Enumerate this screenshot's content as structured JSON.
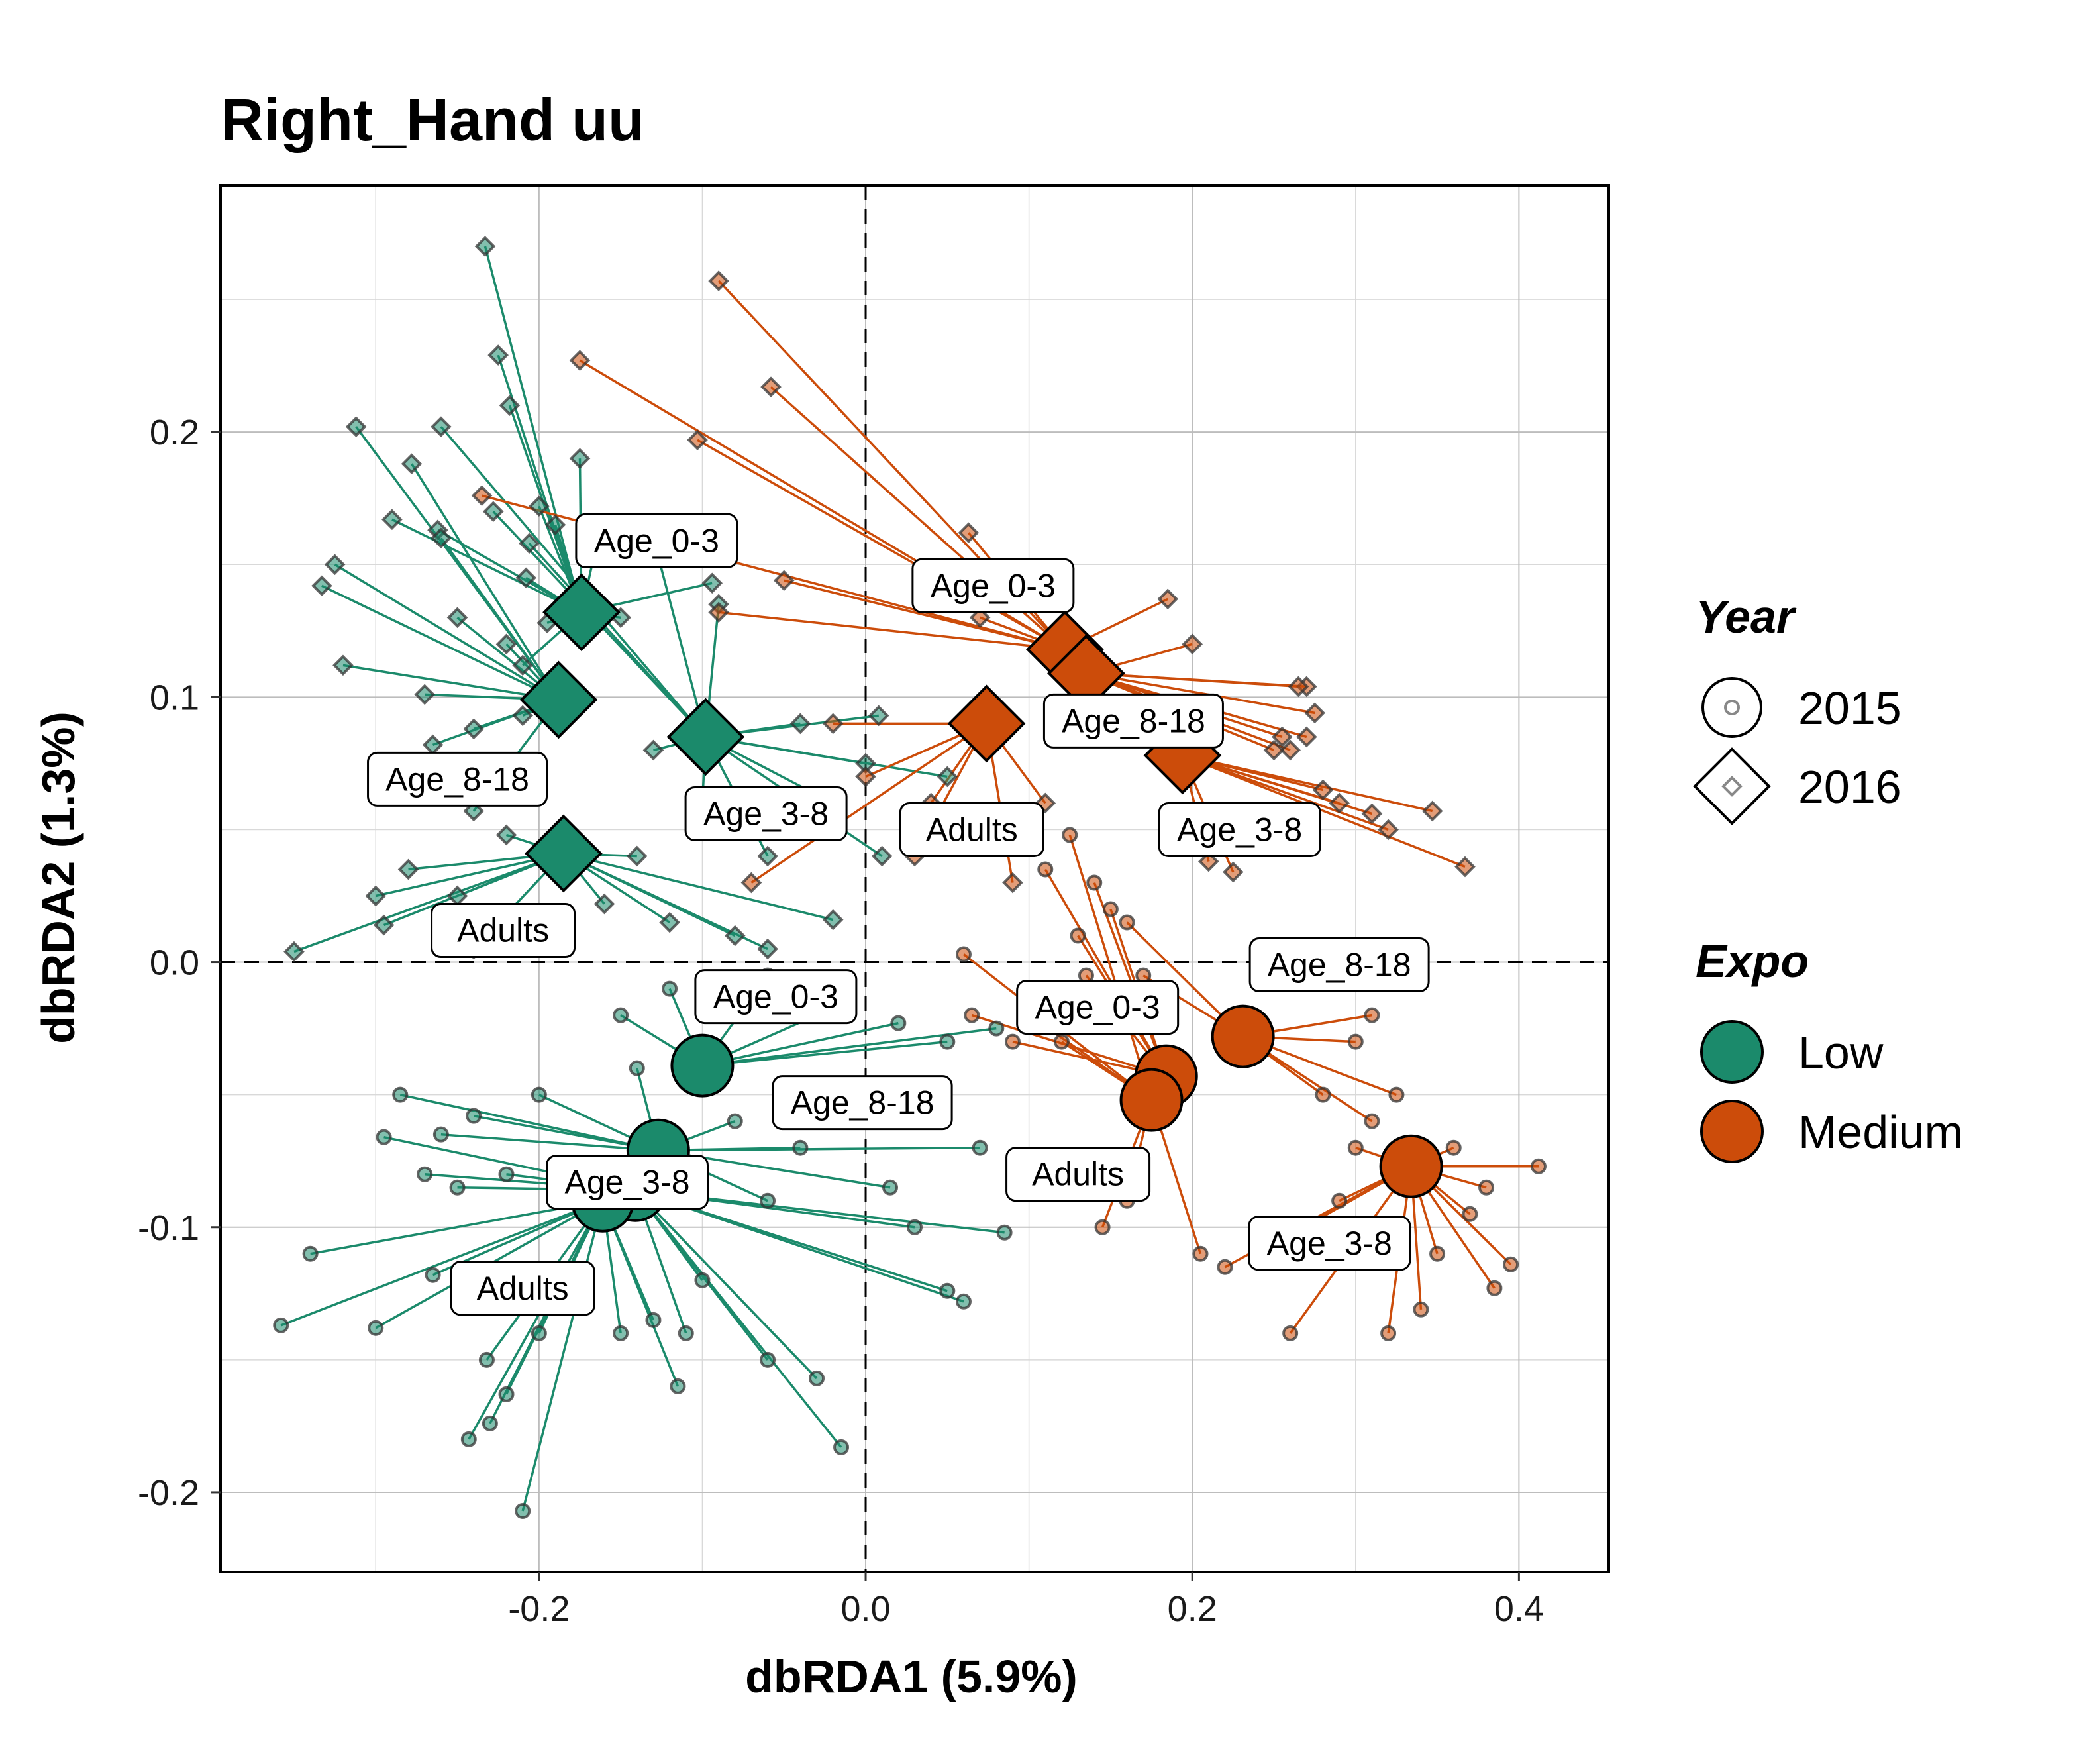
{
  "chart_data": {
    "type": "scatter",
    "title": "Right_Hand uu",
    "xlabel": "dbRDA1 (5.9%)",
    "ylabel": "dbRDA2 (1.3%)",
    "xlim": [
      -0.395,
      0.455
    ],
    "ylim": [
      -0.23,
      0.293
    ],
    "x_ticks": [
      -0.2,
      0.0,
      0.2,
      0.4
    ],
    "x_tick_labels": [
      "-0.2",
      "0.0",
      "0.2",
      "0.4"
    ],
    "y_ticks": [
      -0.2,
      -0.1,
      0.0,
      0.1,
      0.2
    ],
    "y_tick_labels": [
      "-0.2",
      "-0.1",
      "0.0",
      "0.1",
      "0.2"
    ],
    "grid": true,
    "reference_lines": {
      "x": 0,
      "y": 0
    },
    "legend_position": "right",
    "legends": [
      {
        "title": "Year",
        "entries": [
          {
            "label": "2015",
            "shape": "circle"
          },
          {
            "label": "2016",
            "shape": "diamond"
          }
        ]
      },
      {
        "title": "Expo",
        "entries": [
          {
            "label": "Low",
            "color": "#1b8a6b"
          },
          {
            "label": "Medium",
            "color": "#cc4c0a"
          }
        ]
      }
    ],
    "colors": {
      "Low": "#1b8a6b",
      "Medium": "#cc4c0a"
    },
    "centroids": [
      {
        "expo": "Low",
        "year": "2016",
        "age": "Age_0-3",
        "x": -0.174,
        "y": 0.132
      },
      {
        "expo": "Low",
        "year": "2016",
        "age": "Age_8-18",
        "x": -0.188,
        "y": 0.099
      },
      {
        "expo": "Low",
        "year": "2016",
        "age": "Age_3-8",
        "x": -0.098,
        "y": 0.085
      },
      {
        "expo": "Low",
        "year": "2016",
        "age": "Adults",
        "x": -0.185,
        "y": 0.041
      },
      {
        "expo": "Low",
        "year": "2015",
        "age": "Age_0-3",
        "x": -0.1,
        "y": -0.039
      },
      {
        "expo": "Low",
        "year": "2015",
        "age": "Age_8-18",
        "x": -0.127,
        "y": -0.071
      },
      {
        "expo": "Low",
        "year": "2015",
        "age": "Age_3-8",
        "x": -0.141,
        "y": -0.086
      },
      {
        "expo": "Low",
        "year": "2015",
        "age": "Adults",
        "x": -0.161,
        "y": -0.09
      },
      {
        "expo": "Medium",
        "year": "2016",
        "age": "Age_0-3",
        "x": 0.122,
        "y": 0.118
      },
      {
        "expo": "Medium",
        "year": "2016",
        "age": "Age_8-18",
        "x": 0.135,
        "y": 0.109
      },
      {
        "expo": "Medium",
        "year": "2016",
        "age": "Adults",
        "x": 0.074,
        "y": 0.09
      },
      {
        "expo": "Medium",
        "year": "2016",
        "age": "Age_3-8",
        "x": 0.194,
        "y": 0.078
      },
      {
        "expo": "Medium",
        "year": "2015",
        "age": "Age_8-18",
        "x": 0.231,
        "y": -0.028
      },
      {
        "expo": "Medium",
        "year": "2015",
        "age": "Age_0-3",
        "x": 0.184,
        "y": -0.043
      },
      {
        "expo": "Medium",
        "year": "2015",
        "age": "Adults",
        "x": 0.175,
        "y": -0.052
      },
      {
        "expo": "Medium",
        "year": "2015",
        "age": "Age_3-8",
        "x": 0.334,
        "y": -0.077
      }
    ],
    "centroid_labels": [
      {
        "text": "Age_0-3",
        "x": -0.128,
        "y": 0.159
      },
      {
        "text": "Age_8-18",
        "x": -0.25,
        "y": 0.069
      },
      {
        "text": "Age_3-8",
        "x": -0.061,
        "y": 0.056
      },
      {
        "text": "Adults",
        "x": -0.222,
        "y": 0.012
      },
      {
        "text": "Age_0-3",
        "x": 0.078,
        "y": 0.142
      },
      {
        "text": "Age_8-18",
        "x": 0.164,
        "y": 0.091
      },
      {
        "text": "Adults",
        "x": 0.065,
        "y": 0.05
      },
      {
        "text": "Age_3-8",
        "x": 0.229,
        "y": 0.05
      },
      {
        "text": "Age_0-3",
        "x": -0.055,
        "y": -0.013
      },
      {
        "text": "Age_8-18",
        "x": -0.002,
        "y": -0.053
      },
      {
        "text": "Age_3-8",
        "x": -0.146,
        "y": -0.083
      },
      {
        "text": "Adults",
        "x": -0.21,
        "y": -0.123
      },
      {
        "text": "Age_8-18",
        "x": 0.29,
        "y": -0.001
      },
      {
        "text": "Age_0-3",
        "x": 0.142,
        "y": -0.017
      },
      {
        "text": "Adults",
        "x": 0.13,
        "y": -0.08
      },
      {
        "text": "Age_3-8",
        "x": 0.284,
        "y": -0.106
      }
    ],
    "samples": [
      {
        "c": 0,
        "x": -0.233,
        "y": 0.27
      },
      {
        "c": 0,
        "x": -0.225,
        "y": 0.229
      },
      {
        "c": 0,
        "x": -0.218,
        "y": 0.21
      },
      {
        "c": 0,
        "x": -0.175,
        "y": 0.19
      },
      {
        "c": 0,
        "x": -0.2,
        "y": 0.172
      },
      {
        "c": 0,
        "x": -0.19,
        "y": 0.165
      },
      {
        "c": 0,
        "x": -0.262,
        "y": 0.163
      },
      {
        "c": 0,
        "x": -0.29,
        "y": 0.167
      },
      {
        "c": 0,
        "x": -0.208,
        "y": 0.145
      },
      {
        "c": 0,
        "x": -0.165,
        "y": 0.157
      },
      {
        "c": 0,
        "x": -0.094,
        "y": 0.143
      },
      {
        "c": 0,
        "x": -0.15,
        "y": 0.13
      },
      {
        "c": 0,
        "x": -0.21,
        "y": 0.112
      },
      {
        "c": 0,
        "x": -0.195,
        "y": 0.128
      },
      {
        "c": 1,
        "x": -0.312,
        "y": 0.202
      },
      {
        "c": 1,
        "x": -0.325,
        "y": 0.15
      },
      {
        "c": 1,
        "x": -0.333,
        "y": 0.142
      },
      {
        "c": 1,
        "x": -0.32,
        "y": 0.112
      },
      {
        "c": 1,
        "x": -0.278,
        "y": 0.188
      },
      {
        "c": 1,
        "x": -0.26,
        "y": 0.16
      },
      {
        "c": 1,
        "x": -0.27,
        "y": 0.101
      },
      {
        "c": 1,
        "x": -0.24,
        "y": 0.088
      },
      {
        "c": 1,
        "x": -0.25,
        "y": 0.13
      },
      {
        "c": 1,
        "x": -0.265,
        "y": 0.082
      },
      {
        "c": 1,
        "x": -0.22,
        "y": 0.12
      },
      {
        "c": 1,
        "x": -0.21,
        "y": 0.093
      },
      {
        "c": 1,
        "x": -0.24,
        "y": 0.057
      },
      {
        "c": 2,
        "x": -0.26,
        "y": 0.202
      },
      {
        "c": 2,
        "x": -0.228,
        "y": 0.17
      },
      {
        "c": 2,
        "x": -0.206,
        "y": 0.158
      },
      {
        "c": 2,
        "x": -0.13,
        "y": 0.16
      },
      {
        "c": 2,
        "x": -0.09,
        "y": 0.135
      },
      {
        "c": 2,
        "x": -0.13,
        "y": 0.08
      },
      {
        "c": 2,
        "x": -0.1,
        "y": 0.06
      },
      {
        "c": 2,
        "x": -0.06,
        "y": 0.04
      },
      {
        "c": 2,
        "x": -0.02,
        "y": 0.06
      },
      {
        "c": 2,
        "x": 0.0,
        "y": 0.075
      },
      {
        "c": 2,
        "x": 0.05,
        "y": 0.07
      },
      {
        "c": 2,
        "x": 0.008,
        "y": 0.093
      },
      {
        "c": 2,
        "x": -0.04,
        "y": 0.09
      },
      {
        "c": 2,
        "x": 0.01,
        "y": 0.04
      },
      {
        "c": 3,
        "x": -0.35,
        "y": 0.004
      },
      {
        "c": 3,
        "x": -0.3,
        "y": 0.025
      },
      {
        "c": 3,
        "x": -0.295,
        "y": 0.014
      },
      {
        "c": 3,
        "x": -0.28,
        "y": 0.035
      },
      {
        "c": 3,
        "x": -0.22,
        "y": 0.048
      },
      {
        "c": 3,
        "x": -0.16,
        "y": 0.022
      },
      {
        "c": 3,
        "x": -0.14,
        "y": 0.04
      },
      {
        "c": 3,
        "x": -0.12,
        "y": 0.015
      },
      {
        "c": 3,
        "x": -0.08,
        "y": 0.01
      },
      {
        "c": 3,
        "x": -0.06,
        "y": 0.005
      },
      {
        "c": 3,
        "x": -0.02,
        "y": 0.016
      },
      {
        "c": 3,
        "x": -0.25,
        "y": 0.025
      },
      {
        "c": 3,
        "x": -0.24,
        "y": 0.005
      },
      {
        "c": 4,
        "x": -0.06,
        "y": -0.005
      },
      {
        "c": 4,
        "x": -0.03,
        "y": -0.02
      },
      {
        "c": 4,
        "x": 0.02,
        "y": -0.023
      },
      {
        "c": 4,
        "x": 0.05,
        "y": -0.03
      },
      {
        "c": 4,
        "x": 0.08,
        "y": -0.025
      },
      {
        "c": 4,
        "x": -0.15,
        "y": -0.02
      },
      {
        "c": 4,
        "x": -0.12,
        "y": -0.01
      },
      {
        "c": 5,
        "x": -0.285,
        "y": -0.05
      },
      {
        "c": 5,
        "x": -0.26,
        "y": -0.065
      },
      {
        "c": 5,
        "x": -0.24,
        "y": -0.058
      },
      {
        "c": 5,
        "x": -0.2,
        "y": -0.05
      },
      {
        "c": 5,
        "x": -0.08,
        "y": -0.06
      },
      {
        "c": 5,
        "x": -0.04,
        "y": -0.07
      },
      {
        "c": 5,
        "x": 0.07,
        "y": -0.07
      },
      {
        "c": 5,
        "x": 0.015,
        "y": -0.085
      },
      {
        "c": 5,
        "x": -0.06,
        "y": -0.09
      },
      {
        "c": 5,
        "x": -0.14,
        "y": -0.04
      },
      {
        "c": 6,
        "x": -0.295,
        "y": -0.066
      },
      {
        "c": 6,
        "x": -0.27,
        "y": -0.08
      },
      {
        "c": 6,
        "x": -0.25,
        "y": -0.085
      },
      {
        "c": 6,
        "x": -0.22,
        "y": -0.08
      },
      {
        "c": 6,
        "x": -0.1,
        "y": -0.12
      },
      {
        "c": 6,
        "x": -0.06,
        "y": -0.15
      },
      {
        "c": 6,
        "x": -0.03,
        "y": -0.157
      },
      {
        "c": 6,
        "x": -0.015,
        "y": -0.183
      },
      {
        "c": 6,
        "x": 0.05,
        "y": -0.124
      },
      {
        "c": 6,
        "x": 0.06,
        "y": -0.128
      },
      {
        "c": 6,
        "x": 0.085,
        "y": -0.102
      },
      {
        "c": 6,
        "x": 0.03,
        "y": -0.1
      },
      {
        "c": 6,
        "x": -0.11,
        "y": -0.14
      },
      {
        "c": 7,
        "x": -0.358,
        "y": -0.137
      },
      {
        "c": 7,
        "x": -0.34,
        "y": -0.11
      },
      {
        "c": 7,
        "x": -0.3,
        "y": -0.138
      },
      {
        "c": 7,
        "x": -0.265,
        "y": -0.118
      },
      {
        "c": 7,
        "x": -0.232,
        "y": -0.15
      },
      {
        "c": 7,
        "x": -0.243,
        "y": -0.18
      },
      {
        "c": 7,
        "x": -0.22,
        "y": -0.163
      },
      {
        "c": 7,
        "x": -0.21,
        "y": -0.207
      },
      {
        "c": 7,
        "x": -0.15,
        "y": -0.14
      },
      {
        "c": 7,
        "x": -0.13,
        "y": -0.135
      },
      {
        "c": 7,
        "x": -0.115,
        "y": -0.16
      },
      {
        "c": 7,
        "x": -0.2,
        "y": -0.14
      },
      {
        "c": 7,
        "x": -0.23,
        "y": -0.174
      },
      {
        "c": 8,
        "x": -0.09,
        "y": 0.257
      },
      {
        "c": 8,
        "x": -0.175,
        "y": 0.227
      },
      {
        "c": 8,
        "x": -0.058,
        "y": 0.217
      },
      {
        "c": 8,
        "x": -0.103,
        "y": 0.197
      },
      {
        "c": 8,
        "x": -0.235,
        "y": 0.176
      },
      {
        "c": 8,
        "x": -0.05,
        "y": 0.144
      },
      {
        "c": 8,
        "x": -0.09,
        "y": 0.132
      },
      {
        "c": 8,
        "x": 0.185,
        "y": 0.137
      },
      {
        "c": 8,
        "x": 0.063,
        "y": 0.162
      },
      {
        "c": 8,
        "x": 0.07,
        "y": 0.13
      },
      {
        "c": 9,
        "x": 0.27,
        "y": 0.104
      },
      {
        "c": 9,
        "x": 0.265,
        "y": 0.104
      },
      {
        "c": 9,
        "x": 0.275,
        "y": 0.094
      },
      {
        "c": 9,
        "x": 0.255,
        "y": 0.085
      },
      {
        "c": 9,
        "x": 0.26,
        "y": 0.08
      },
      {
        "c": 9,
        "x": 0.25,
        "y": 0.08
      },
      {
        "c": 9,
        "x": 0.27,
        "y": 0.085
      },
      {
        "c": 9,
        "x": 0.2,
        "y": 0.12
      },
      {
        "c": 10,
        "x": 0.0,
        "y": 0.07
      },
      {
        "c": 10,
        "x": -0.02,
        "y": 0.09
      },
      {
        "c": 10,
        "x": 0.04,
        "y": 0.06
      },
      {
        "c": 10,
        "x": 0.03,
        "y": 0.04
      },
      {
        "c": 10,
        "x": 0.09,
        "y": 0.03
      },
      {
        "c": 10,
        "x": -0.07,
        "y": 0.03
      },
      {
        "c": 10,
        "x": 0.11,
        "y": 0.06
      },
      {
        "c": 11,
        "x": 0.28,
        "y": 0.065
      },
      {
        "c": 11,
        "x": 0.29,
        "y": 0.06
      },
      {
        "c": 11,
        "x": 0.31,
        "y": 0.056
      },
      {
        "c": 11,
        "x": 0.32,
        "y": 0.05
      },
      {
        "c": 11,
        "x": 0.347,
        "y": 0.057
      },
      {
        "c": 11,
        "x": 0.367,
        "y": 0.036
      },
      {
        "c": 11,
        "x": 0.225,
        "y": 0.034
      },
      {
        "c": 11,
        "x": 0.21,
        "y": 0.038
      },
      {
        "c": 12,
        "x": 0.31,
        "y": -0.02
      },
      {
        "c": 12,
        "x": 0.3,
        "y": -0.03
      },
      {
        "c": 12,
        "x": 0.325,
        "y": -0.05
      },
      {
        "c": 12,
        "x": 0.31,
        "y": -0.06
      },
      {
        "c": 12,
        "x": 0.16,
        "y": 0.015
      },
      {
        "c": 12,
        "x": 0.17,
        "y": -0.005
      },
      {
        "c": 12,
        "x": 0.28,
        "y": -0.05
      },
      {
        "c": 13,
        "x": 0.11,
        "y": 0.035
      },
      {
        "c": 13,
        "x": 0.14,
        "y": 0.03
      },
      {
        "c": 13,
        "x": 0.15,
        "y": 0.02
      },
      {
        "c": 13,
        "x": 0.13,
        "y": 0.01
      },
      {
        "c": 13,
        "x": 0.135,
        "y": -0.005
      },
      {
        "c": 13,
        "x": 0.09,
        "y": -0.03
      },
      {
        "c": 13,
        "x": 0.065,
        "y": -0.02
      },
      {
        "c": 14,
        "x": 0.125,
        "y": 0.048
      },
      {
        "c": 14,
        "x": 0.06,
        "y": 0.003
      },
      {
        "c": 14,
        "x": 0.1,
        "y": -0.02
      },
      {
        "c": 14,
        "x": 0.12,
        "y": -0.03
      },
      {
        "c": 14,
        "x": 0.16,
        "y": -0.09
      },
      {
        "c": 14,
        "x": 0.145,
        "y": -0.1
      },
      {
        "c": 14,
        "x": 0.205,
        "y": -0.11
      },
      {
        "c": 15,
        "x": 0.412,
        "y": -0.077
      },
      {
        "c": 15,
        "x": 0.36,
        "y": -0.07
      },
      {
        "c": 15,
        "x": 0.38,
        "y": -0.085
      },
      {
        "c": 15,
        "x": 0.395,
        "y": -0.114
      },
      {
        "c": 15,
        "x": 0.385,
        "y": -0.123
      },
      {
        "c": 15,
        "x": 0.37,
        "y": -0.095
      },
      {
        "c": 15,
        "x": 0.35,
        "y": -0.11
      },
      {
        "c": 15,
        "x": 0.34,
        "y": -0.131
      },
      {
        "c": 15,
        "x": 0.32,
        "y": -0.14
      },
      {
        "c": 15,
        "x": 0.26,
        "y": -0.14
      },
      {
        "c": 15,
        "x": 0.22,
        "y": -0.115
      },
      {
        "c": 15,
        "x": 0.24,
        "y": -0.11
      },
      {
        "c": 15,
        "x": 0.29,
        "y": -0.09
      },
      {
        "c": 15,
        "x": 0.3,
        "y": -0.07
      }
    ]
  }
}
